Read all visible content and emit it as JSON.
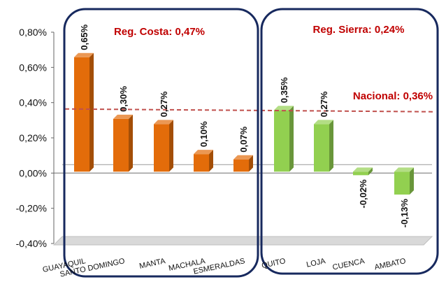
{
  "chart_data": {
    "type": "bar",
    "categories": [
      "GUAYAQUIL",
      "SANTO DOMINGO",
      "MANTA",
      "MACHALA",
      "ESMERALDAS",
      "QUITO",
      "LOJA",
      "CUENCA",
      "AMBATO"
    ],
    "values": [
      0.65,
      0.3,
      0.27,
      0.1,
      0.07,
      0.35,
      0.27,
      -0.02,
      -0.13
    ],
    "value_labels": [
      "0,65%",
      "0,30%",
      "0,27%",
      "0,10%",
      "0,07%",
      "0,35%",
      "0,27%",
      "-0,02%",
      "-0,13%"
    ],
    "yticks": [
      -0.4,
      -0.2,
      0.0,
      0.2,
      0.4,
      0.6,
      0.8
    ],
    "ytick_labels": [
      "-0,40%",
      "-0,20%",
      "0,00%",
      "0,20%",
      "0,40%",
      "0,60%",
      "0,80%"
    ],
    "ylim": [
      -0.4,
      0.8
    ],
    "groups": [
      {
        "label": "Reg. Costa: 0,47%",
        "value": 0.47,
        "color": "#E36C0A",
        "count": 5
      },
      {
        "label": "Reg. Sierra: 0,24%",
        "value": 0.24,
        "color": "#92D050",
        "count": 4
      }
    ],
    "reference_line": {
      "label": "Nacional: 0,36%",
      "value": 0.36,
      "color": "#C0504D"
    },
    "frame_color": "#17295E",
    "label_color": "#C00000"
  }
}
